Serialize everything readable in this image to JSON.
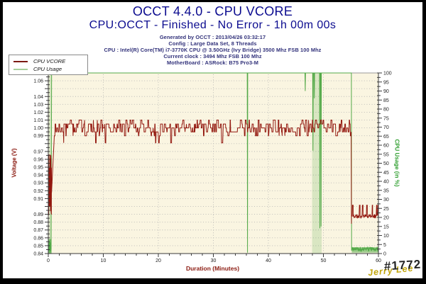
{
  "header": {
    "title": "OCCT 4.4.0 - CPU VCORE",
    "subtitle": "CPU:OCCT - Finished - No Error - 1h 00m 00s",
    "title_color": "#0b0b8f",
    "info_color": "#31317a",
    "info": [
      "Generated by OCCT : 2013/04/26 03:32:17",
      "Config : Large Data Set, 8 Threads",
      "CPU : Intel(R) Core(TM) i7-3770K CPU @ 3.50GHz (Ivy Bridge) 3500 Mhz FSB 100 Mhz",
      "Current clock : 3494 Mhz FSB 100 Mhz",
      "MotherBoard : ASRock: B75 Pro3-M"
    ]
  },
  "watermark": {
    "number": "#1772",
    "number_color": "#262626",
    "signature": "Jerry Lee",
    "signature_color": "#c2a60b"
  },
  "chart_data": {
    "type": "line",
    "title": "OCCT 4.4.0 - CPU VCORE",
    "plot_bg": "#faf5e1",
    "plot_border_color": "#999999",
    "grid_color": "#b8b8b6",
    "axis_color": "#3a3a3a",
    "tick_label_color": "#1e1e1e",
    "legend_position": "top-left",
    "x_axis": {
      "label": "Duration (Minutes)",
      "label_color": "#8b1a10",
      "min": 0,
      "max": 60,
      "major_tick_step": 10,
      "minor_tick_step": 2,
      "tick_labels": [
        0,
        10,
        20,
        30,
        40,
        50,
        60
      ]
    },
    "y_left": {
      "label": "Voltage (V)",
      "label_color": "#8b1a10",
      "min": 0.84,
      "max": 1.07,
      "major_tick_step": 0.01,
      "minor_tick_step": 0.005,
      "skipped_labels": [
        1.05,
        0.98,
        0.9
      ]
    },
    "y_right": {
      "label": "CPU Usage (in %)",
      "label_color": "#2f9e2f",
      "min": 0,
      "max": 100,
      "major_tick_step": 5,
      "minor_tick_step": 2.5
    },
    "series": [
      {
        "name": "CPU Usage",
        "axis": "right",
        "color": "#53a948",
        "legend_color": "#a6cf9b",
        "segments": [
          {
            "kind": "noise",
            "x0": 0.02,
            "x1": 0.5,
            "min": 1,
            "max": 7,
            "step": 0.02,
            "seed": 5
          },
          {
            "kind": "level",
            "x0": 0.6,
            "x1": 55.08,
            "y": 100,
            "dips": [
              {
                "x": 36.2,
                "to": 0.5
              },
              {
                "x": 46.7,
                "to": 90
              },
              {
                "x": 48.1,
                "to": 57
              },
              {
                "x": 48.35,
                "to": 86
              },
              {
                "x": 49.35,
                "to": 14
              },
              {
                "x": 49.58,
                "to": 15
              }
            ]
          },
          {
            "kind": "noise",
            "x0": 55.12,
            "x1": 60,
            "min": 1.2,
            "max": 3.6,
            "step": 0.05,
            "seed": 9
          }
        ],
        "bands": [
          {
            "x0": 0.12,
            "x1": 0.62,
            "y0": 0,
            "y1": 100,
            "alpha": 0.2
          },
          {
            "x0": 47.95,
            "x1": 49.68,
            "y0": 0,
            "y1": 100,
            "alpha": 0.2
          },
          {
            "x0": 0.05,
            "x1": 0.58,
            "y0": 0,
            "y1": 8,
            "alpha": 0.75
          },
          {
            "x0": 55.15,
            "x1": 60,
            "y0": 0.5,
            "y1": 3.5,
            "alpha": 0.55
          }
        ]
      },
      {
        "name": "CPU VCORE",
        "axis": "left",
        "color": "#93180f",
        "legend_color": "#7c1a12",
        "segments": [
          {
            "kind": "noise",
            "x0": 0.07,
            "x1": 0.6,
            "min": 0.888,
            "max": 0.968,
            "step": 0.012,
            "seed": 7,
            "first": 0.965
          },
          {
            "kind": "band",
            "x0": 1.1,
            "x1": 55.05,
            "low": 0.99,
            "high": 1.01,
            "dip": 0.981,
            "dip_prob": 0.015,
            "step": 0.05,
            "seed": 3
          },
          {
            "kind": "pulses",
            "x0": 55.1,
            "x1": 60,
            "base": 0.8875,
            "jitter": 0.0025,
            "high": 0.9015,
            "pulse_prob": 0.09,
            "step": 0.06,
            "start": 0.878,
            "seed": 11
          }
        ]
      }
    ]
  }
}
